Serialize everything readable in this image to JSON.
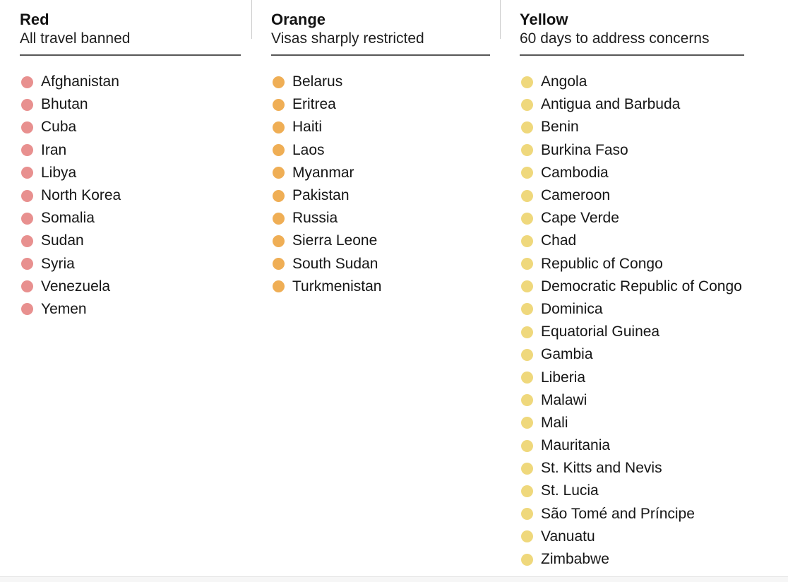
{
  "page": {
    "background": "#ffffff",
    "text_color": "#161616"
  },
  "columns": [
    {
      "id": "red",
      "title": "Red",
      "subtitle": "All travel banned",
      "dot_color": "#E8908F",
      "countries": [
        "Afghanistan",
        "Bhutan",
        "Cuba",
        "Iran",
        "Libya",
        "North Korea",
        "Somalia",
        "Sudan",
        "Syria",
        "Venezuela",
        "Yemen"
      ]
    },
    {
      "id": "orange",
      "title": "Orange",
      "subtitle": "Visas sharply restricted",
      "dot_color": "#EFAE55",
      "countries": [
        "Belarus",
        "Eritrea",
        "Haiti",
        "Laos",
        "Myanmar",
        "Pakistan",
        "Russia",
        "Sierra Leone",
        "South Sudan",
        "Turkmenistan"
      ]
    },
    {
      "id": "yellow",
      "title": "Yellow",
      "subtitle": "60 days to address concerns",
      "dot_color": "#EFD87C",
      "countries": [
        "Angola",
        "Antigua and Barbuda",
        "Benin",
        "Burkina Faso",
        "Cambodia",
        "Cameroon",
        "Cape Verde",
        "Chad",
        "Republic of Congo",
        "Democratic Republic of Congo",
        "Dominica",
        "Equatorial Guinea",
        "Gambia",
        "Liberia",
        "Malawi",
        "Mali",
        "Mauritania",
        "St. Kitts and Nevis",
        "St. Lucia",
        "São Tomé and Príncipe",
        "Vanuatu",
        "Zimbabwe"
      ]
    }
  ]
}
